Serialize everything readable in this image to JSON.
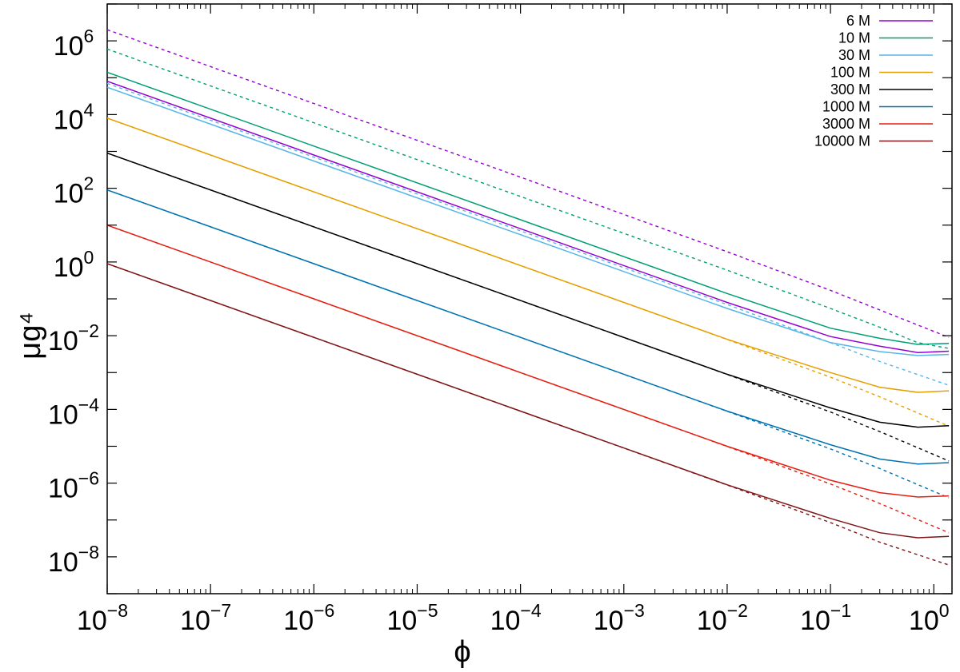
{
  "chart_data": {
    "type": "line",
    "xlabel": "ϕ",
    "ylabel": "μg⁴",
    "xscale": "log",
    "yscale": "log",
    "xlim": [
      1e-08,
      1.5
    ],
    "ylim": [
      1e-09,
      10000000.0
    ],
    "x_ticks": [
      {
        "base": "10",
        "exp": "−8",
        "value": 1e-08
      },
      {
        "base": "10",
        "exp": "−7",
        "value": 1e-07
      },
      {
        "base": "10",
        "exp": "−6",
        "value": 1e-06
      },
      {
        "base": "10",
        "exp": "−5",
        "value": 1e-05
      },
      {
        "base": "10",
        "exp": "−4",
        "value": 0.0001
      },
      {
        "base": "10",
        "exp": "−3",
        "value": 0.001
      },
      {
        "base": "10",
        "exp": "−2",
        "value": 0.01
      },
      {
        "base": "10",
        "exp": "−1",
        "value": 0.1
      },
      {
        "base": "10",
        "exp": "0",
        "value": 1
      }
    ],
    "y_ticks": [
      {
        "base": "10",
        "exp": "−8",
        "value": 1e-08
      },
      {
        "base": "10",
        "exp": "−6",
        "value": 1e-06
      },
      {
        "base": "10",
        "exp": "−4",
        "value": 0.0001
      },
      {
        "base": "10",
        "exp": "−2",
        "value": 0.01
      },
      {
        "base": "10",
        "exp": "0",
        "value": 1
      },
      {
        "base": "10",
        "exp": "2",
        "value": 100.0
      },
      {
        "base": "10",
        "exp": "4",
        "value": 10000.0
      },
      {
        "base": "10",
        "exp": "6",
        "value": 1000000.0
      }
    ],
    "grid": false,
    "legend_position": "top-right",
    "series": [
      {
        "name": "6 M",
        "color": "#9400d3",
        "solid": {
          "x": [
            1e-08,
            1e-06,
            0.0001,
            0.01,
            0.1,
            0.3,
            0.7,
            1.4
          ],
          "y": [
            80000.0,
            800,
            8,
            0.08,
            0.0095,
            0.0052,
            0.0035,
            0.0038
          ]
        },
        "dashed": {
          "x": [
            1e-08,
            1e-06,
            0.0001,
            0.01,
            0.1,
            0.3,
            1.4
          ],
          "y": [
            2000000.0,
            20000.0,
            200,
            1.9,
            0.17,
            0.05,
            0.009
          ]
        }
      },
      {
        "name": "10 M",
        "color": "#009e73",
        "solid": {
          "x": [
            1e-08,
            1e-06,
            0.0001,
            0.01,
            0.1,
            0.3,
            0.7,
            1.4
          ],
          "y": [
            140000.0,
            1400,
            14,
            0.14,
            0.016,
            0.0085,
            0.0058,
            0.0062
          ]
        },
        "dashed": {
          "x": [
            1e-08,
            1e-06,
            0.0001,
            0.01,
            0.1,
            0.3,
            0.7,
            1.4
          ],
          "y": [
            600000.0,
            6000,
            60,
            0.6,
            0.055,
            0.017,
            0.0065,
            0.0045
          ]
        }
      },
      {
        "name": "30 M",
        "color": "#56b4e9",
        "solid": {
          "x": [
            1e-08,
            1e-06,
            0.0001,
            0.01,
            0.1,
            0.3,
            0.7,
            1.4
          ],
          "y": [
            55000.0,
            550,
            5.5,
            0.055,
            0.0065,
            0.0037,
            0.0029,
            0.0031
          ]
        },
        "dashed": {
          "x": [
            1e-08,
            1e-06,
            0.0001,
            0.01,
            0.1,
            0.3,
            1.4
          ],
          "y": [
            70000.0,
            700,
            7,
            0.07,
            0.0065,
            0.002,
            0.00045
          ]
        }
      },
      {
        "name": "100 M",
        "color": "#e69f00",
        "solid": {
          "x": [
            1e-08,
            1e-06,
            0.0001,
            0.01,
            0.1,
            0.3,
            0.7,
            1.4
          ],
          "y": [
            8000.0,
            80,
            0.8,
            0.008,
            0.001,
            0.0004,
            0.00029,
            0.00032
          ]
        },
        "dashed": {
          "x": [
            1e-08,
            1e-06,
            0.0001,
            0.01,
            0.1,
            0.3,
            1.4
          ],
          "y": [
            8000.0,
            80,
            0.8,
            0.0079,
            0.00075,
            0.00022,
            3.5e-05
          ]
        }
      },
      {
        "name": "300 M",
        "color": "#000000",
        "solid": {
          "x": [
            1e-08,
            1e-06,
            0.0001,
            0.01,
            0.1,
            0.3,
            0.7,
            1.4
          ],
          "y": [
            900,
            9,
            0.09,
            0.0009,
            0.00011,
            4.5e-05,
            3.3e-05,
            3.6e-05
          ]
        },
        "dashed": {
          "x": [
            1e-08,
            1e-06,
            0.0001,
            0.01,
            0.1,
            0.3,
            1.4
          ],
          "y": [
            900,
            9,
            0.09,
            0.00089,
            8.5e-05,
            2.5e-05,
            4e-06
          ]
        }
      },
      {
        "name": "1000 M",
        "color": "#0072b2",
        "solid": {
          "x": [
            1e-08,
            1e-06,
            0.0001,
            0.01,
            0.1,
            0.3,
            0.7,
            1.4
          ],
          "y": [
            90,
            0.9,
            0.009,
            9e-05,
            1.1e-05,
            4.5e-06,
            3.3e-06,
            3.6e-06
          ]
        },
        "dashed": {
          "x": [
            1e-08,
            1e-06,
            0.0001,
            0.01,
            0.1,
            0.3,
            1.4
          ],
          "y": [
            90,
            0.9,
            0.009,
            8.9e-05,
            8.5e-06,
            2.5e-06,
            4e-07
          ]
        }
      },
      {
        "name": "3000 M",
        "color": "#e51e10",
        "solid": {
          "x": [
            1e-08,
            1e-06,
            0.0001,
            0.01,
            0.1,
            0.3,
            0.7,
            1.4
          ],
          "y": [
            10,
            0.1,
            0.001,
            1e-05,
            1.2e-06,
            5.5e-07,
            4.2e-07,
            4.5e-07
          ]
        },
        "dashed": {
          "x": [
            1e-08,
            1e-06,
            0.0001,
            0.01,
            0.1,
            0.3,
            1.4
          ],
          "y": [
            10,
            0.1,
            0.001,
            9.9e-06,
            9.5e-07,
            2.8e-07,
            4.5e-08
          ]
        }
      },
      {
        "name": "10000 M",
        "color": "#7f1416",
        "solid": {
          "x": [
            1e-08,
            1e-06,
            0.0001,
            0.01,
            0.1,
            0.3,
            0.7,
            1.4
          ],
          "y": [
            0.9,
            0.009,
            9e-05,
            9e-07,
            1.1e-07,
            4.5e-08,
            3.3e-08,
            3.6e-08
          ]
        },
        "dashed": {
          "x": [
            1e-08,
            1e-06,
            0.0001,
            0.01,
            0.1,
            0.3,
            1.4
          ],
          "y": [
            0.9,
            0.009,
            9e-05,
            8.9e-07,
            8.5e-08,
            2.5e-08,
            6e-09
          ]
        }
      }
    ]
  }
}
